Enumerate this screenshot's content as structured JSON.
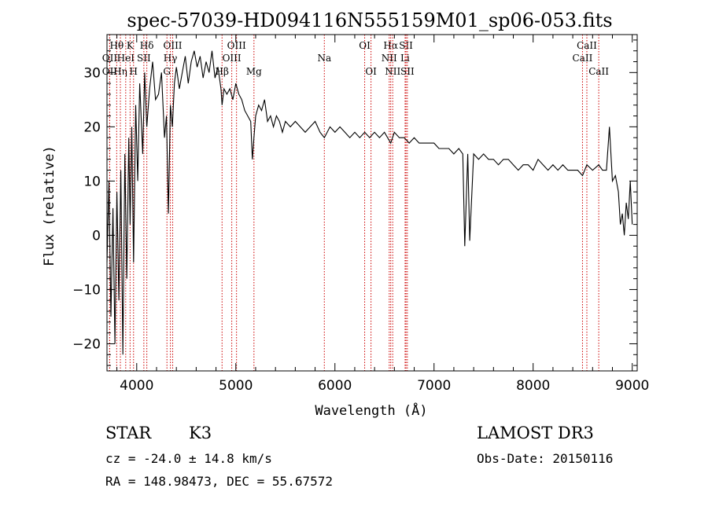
{
  "chart_data": {
    "type": "line",
    "title": "spec-57039-HD094116N555159M01_sp06-053.fits",
    "xlabel": "Wavelength (Å)",
    "ylabel": "Flux (relative)",
    "xlim": [
      3700,
      9050
    ],
    "ylim": [
      -25,
      37
    ],
    "x_ticks": [
      4000,
      5000,
      6000,
      7000,
      8000,
      9000
    ],
    "y_ticks": [
      -20,
      -10,
      0,
      10,
      20,
      30
    ],
    "grid": false,
    "series": [
      {
        "x": [
          3700,
          3720,
          3740,
          3760,
          3780,
          3800,
          3820,
          3840,
          3860,
          3880,
          3900,
          3920,
          3933,
          3950,
          3968,
          3990,
          4010,
          4030,
          4060,
          4080,
          4102,
          4130,
          4160,
          4190,
          4220,
          4250,
          4280,
          4300,
          4320,
          4340,
          4360,
          4380,
          4400,
          4430,
          4460,
          4490,
          4520,
          4550,
          4580,
          4610,
          4640,
          4670,
          4700,
          4730,
          4760,
          4790,
          4820,
          4850,
          4861,
          4880,
          4910,
          4940,
          4970,
          5000,
          5030,
          5060,
          5090,
          5120,
          5150,
          5167,
          5183,
          5200,
          5230,
          5260,
          5290,
          5320,
          5350,
          5380,
          5410,
          5440,
          5470,
          5500,
          5550,
          5600,
          5650,
          5700,
          5750,
          5800,
          5850,
          5893,
          5950,
          6000,
          6050,
          6100,
          6150,
          6200,
          6250,
          6300,
          6350,
          6400,
          6450,
          6500,
          6563,
          6600,
          6650,
          6700,
          6750,
          6800,
          6850,
          6900,
          6950,
          7000,
          7050,
          7100,
          7150,
          7200,
          7250,
          7290,
          7310,
          7340,
          7360,
          7400,
          7450,
          7500,
          7550,
          7600,
          7650,
          7700,
          7750,
          7800,
          7850,
          7900,
          7950,
          8000,
          8050,
          8100,
          8150,
          8200,
          8250,
          8300,
          8350,
          8400,
          8450,
          8498,
          8542,
          8600,
          8662,
          8700,
          8740,
          8770,
          8800,
          8830,
          8860,
          8880,
          8900,
          8920,
          8940,
          8960,
          8980,
          9000
        ],
        "y": [
          -5,
          10,
          -15,
          5,
          -20,
          8,
          -12,
          12,
          -22,
          15,
          -8,
          18,
          2,
          20,
          -5,
          24,
          10,
          28,
          15,
          30,
          20,
          27,
          32,
          25,
          26,
          30,
          18,
          22,
          4,
          24,
          20,
          28,
          31,
          27,
          30,
          33,
          28,
          32,
          34,
          31,
          33,
          29,
          32,
          30,
          34,
          29,
          31,
          27,
          24,
          27,
          26,
          27,
          25,
          28,
          26,
          25,
          23,
          22,
          21,
          14,
          18,
          22,
          24,
          23,
          25,
          21,
          22,
          20,
          22,
          21,
          19,
          21,
          20,
          21,
          20,
          19,
          20,
          21,
          19,
          18,
          20,
          19,
          20,
          19,
          18,
          19,
          18,
          19,
          18,
          19,
          18,
          19,
          17,
          19,
          18,
          18,
          17,
          18,
          17,
          17,
          17,
          17,
          16,
          16,
          16,
          15,
          16,
          15,
          -2,
          15,
          -1,
          15,
          14,
          15,
          14,
          14,
          13,
          14,
          14,
          13,
          12,
          13,
          13,
          12,
          14,
          13,
          12,
          13,
          12,
          13,
          12,
          12,
          12,
          11,
          13,
          12,
          13,
          12,
          12,
          20,
          10,
          11,
          8,
          2,
          4,
          0,
          6,
          3,
          10,
          2
        ]
      }
    ],
    "line_markers": [
      {
        "name": "Hθ",
        "wl": 3798,
        "row": 1
      },
      {
        "name": "OII",
        "wl": 3727,
        "row": 2
      },
      {
        "name": "OII",
        "wl": 3727,
        "row": 3
      },
      {
        "name": "Hη",
        "wl": 3835,
        "row": 3
      },
      {
        "name": "K",
        "wl": 3933,
        "row": 1
      },
      {
        "name": "HeI",
        "wl": 3889,
        "row": 2
      },
      {
        "name": "H",
        "wl": 3968,
        "row": 3
      },
      {
        "name": "SII",
        "wl": 4072,
        "row": 2
      },
      {
        "name": "Hδ",
        "wl": 4102,
        "row": 1
      },
      {
        "name": "OIII",
        "wl": 4363,
        "row": 1
      },
      {
        "name": "Hγ",
        "wl": 4340,
        "row": 2
      },
      {
        "name": "G",
        "wl": 4305,
        "row": 3
      },
      {
        "name": "OIII",
        "wl": 5007,
        "row": 1
      },
      {
        "name": "OIII",
        "wl": 4959,
        "row": 2
      },
      {
        "name": "Hβ",
        "wl": 4861,
        "row": 3
      },
      {
        "name": "Mg",
        "wl": 5183,
        "row": 3
      },
      {
        "name": "Na",
        "wl": 5893,
        "row": 2
      },
      {
        "name": "OI",
        "wl": 6300,
        "row": 1
      },
      {
        "name": "OI",
        "wl": 6364,
        "row": 3
      },
      {
        "name": "Hα",
        "wl": 6563,
        "row": 1
      },
      {
        "name": "NII",
        "wl": 6548,
        "row": 2
      },
      {
        "name": "NII",
        "wl": 6583,
        "row": 3
      },
      {
        "name": "SII",
        "wl": 6717,
        "row": 1
      },
      {
        "name": "Li",
        "wl": 6708,
        "row": 2
      },
      {
        "name": "SII",
        "wl": 6731,
        "row": 3
      },
      {
        "name": "CaII",
        "wl": 8542,
        "row": 1
      },
      {
        "name": "CaII",
        "wl": 8498,
        "row": 2
      },
      {
        "name": "CaII",
        "wl": 8662,
        "row": 3
      }
    ],
    "line_marker_color": "#cc0000"
  },
  "info": {
    "object_class": "STAR",
    "subclass": "K3",
    "survey": "LAMOST DR3",
    "velocity": "cz = -24.0 ± 14.8 km/s",
    "obs_date": "Obs-Date: 20150116",
    "coords": "RA = 148.98473, DEC =  55.67572"
  }
}
